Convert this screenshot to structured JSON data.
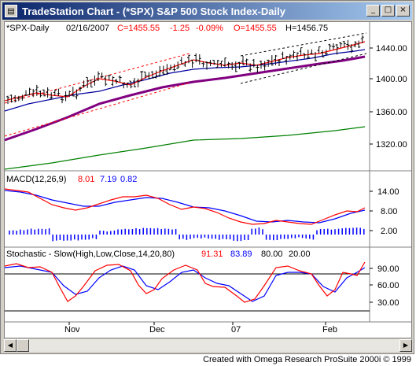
{
  "window": {
    "title": "TradeStation Chart - (*SPX) S&P 500 Stock Index-Daily",
    "minimize_glyph": "_",
    "maximize_glyph": "□",
    "close_glyph": "×"
  },
  "price_header": {
    "symbol": "*SPX-Daily",
    "date": "02/16/2007",
    "close": "C=1455.55",
    "change": "-1.25",
    "change_pct": "-0.09%",
    "open": "O=1455.55",
    "high": "H=1456.75"
  },
  "macd_header": {
    "label": "MACD(12,26,9)",
    "v1": "8.01",
    "v2": "7.19",
    "v3": "0.82"
  },
  "stoch_header": {
    "label": "Stochastic - Slow(High,Low,Close,14,20,80)",
    "v1": "91.31",
    "v2": "83.89",
    "v3": "80.00",
    "v4": "20.00"
  },
  "price_axis": [
    "1440.00",
    "1400.00",
    "1360.00",
    "1320.00"
  ],
  "macd_axis": [
    "14.00",
    "8.00",
    "2.00"
  ],
  "stoch_axis": [
    "90.00",
    "60.00",
    "30.00"
  ],
  "x_axis": [
    "Nov",
    "Dec",
    "07",
    "Feb"
  ],
  "footer": "Created with Omega Research ProSuite 2000i © 1999",
  "colors": {
    "price_bars": "#000000",
    "ma_fast": "#ff0000",
    "ma_mid": "#0000a0",
    "ma_slow": "#800080",
    "ma_long": "#008000",
    "macd": "#ff0000",
    "signal": "#0000ff",
    "hist": "#0000ff",
    "stoch_k": "#ff0000",
    "stoch_d": "#0000ff"
  }
}
